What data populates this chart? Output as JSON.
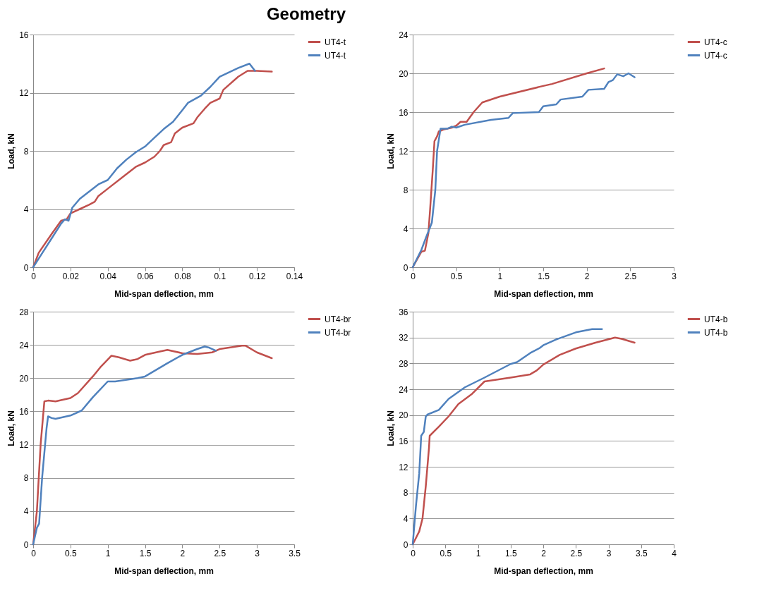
{
  "chart_data": [
    {
      "type": "line",
      "title": "Geometry",
      "xlabel": "Mid-span deflection, mm",
      "ylabel": "Load, kN",
      "xlim": [
        0,
        0.14
      ],
      "xticks": [
        0,
        0.02,
        0.04,
        0.06,
        0.08,
        0.1,
        0.12,
        0.14
      ],
      "ylim": [
        0,
        16
      ],
      "yticks": [
        0,
        4,
        8,
        12,
        16
      ],
      "grid": "y",
      "legend": "right",
      "series": [
        {
          "name": "UT4-t",
          "color": "#c0504d",
          "x": [
            0,
            0.003,
            0.01,
            0.015,
            0.018,
            0.02,
            0.025,
            0.03,
            0.033,
            0.035,
            0.04,
            0.05,
            0.055,
            0.06,
            0.065,
            0.068,
            0.07,
            0.074,
            0.076,
            0.08,
            0.086,
            0.088,
            0.092,
            0.095,
            0.1,
            0.102,
            0.11,
            0.115,
            0.12,
            0.128
          ],
          "values": [
            0,
            1,
            2.3,
            3.2,
            3.3,
            3.7,
            4,
            4.3,
            4.5,
            4.9,
            5.4,
            6.4,
            6.9,
            7.2,
            7.6,
            8,
            8.4,
            8.6,
            9.2,
            9.6,
            9.9,
            10.3,
            10.9,
            11.3,
            11.6,
            12.2,
            13.1,
            13.5,
            13.5,
            13.45
          ]
        },
        {
          "name": "UT4-t",
          "color": "#4f81bd",
          "x": [
            0,
            0.005,
            0.01,
            0.015,
            0.017,
            0.019,
            0.021,
            0.025,
            0.03,
            0.035,
            0.04,
            0.045,
            0.05,
            0.055,
            0.06,
            0.065,
            0.07,
            0.075,
            0.08,
            0.083,
            0.09,
            0.095,
            0.1,
            0.105,
            0.11,
            0.116,
            0.119
          ],
          "values": [
            0,
            1,
            2,
            3,
            3.3,
            3.2,
            4.1,
            4.7,
            5.2,
            5.7,
            6,
            6.8,
            7.4,
            7.9,
            8.3,
            8.9,
            9.5,
            10,
            10.8,
            11.3,
            11.8,
            12.4,
            13.1,
            13.4,
            13.7,
            14,
            13.5
          ]
        }
      ]
    },
    {
      "type": "line",
      "xlabel": "Mid-span deflection, mm",
      "ylabel": "Load, kN",
      "xlim": [
        0,
        3
      ],
      "xticks": [
        0,
        0.5,
        1,
        1.5,
        2,
        2.5,
        3
      ],
      "ylim": [
        0,
        24
      ],
      "yticks": [
        0,
        4,
        8,
        12,
        16,
        20,
        24
      ],
      "grid": "y",
      "legend": "right",
      "series": [
        {
          "name": "UT4-c",
          "color": "#c0504d",
          "x": [
            0,
            0.1,
            0.14,
            0.18,
            0.2,
            0.23,
            0.25,
            0.28,
            0.3,
            0.35,
            0.45,
            0.5,
            0.55,
            0.62,
            0.7,
            0.8,
            1,
            1.5,
            1.6,
            2,
            2.2
          ],
          "values": [
            0,
            1.6,
            1.7,
            3.5,
            6,
            10,
            13,
            13.5,
            14,
            14.2,
            14.4,
            14.6,
            15,
            15,
            16,
            17,
            17.6,
            18.7,
            18.9,
            20,
            20.5
          ]
        },
        {
          "name": "UT4-c",
          "color": "#4f81bd",
          "x": [
            0,
            0.1,
            0.15,
            0.22,
            0.26,
            0.28,
            0.32,
            0.4,
            0.45,
            0.5,
            0.6,
            0.9,
            1.1,
            1.15,
            1.45,
            1.5,
            1.65,
            1.7,
            1.95,
            2.02,
            2.2,
            2.25,
            2.3,
            2.35,
            2.42,
            2.48,
            2.55
          ],
          "values": [
            0,
            1.8,
            3,
            4.6,
            8,
            12,
            14.3,
            14.3,
            14.5,
            14.4,
            14.7,
            15.2,
            15.4,
            15.9,
            16,
            16.6,
            16.8,
            17.3,
            17.6,
            18.3,
            18.4,
            19.1,
            19.3,
            19.9,
            19.7,
            20,
            19.6
          ]
        }
      ]
    },
    {
      "type": "line",
      "xlabel": "Mid-span deflection, mm",
      "ylabel": "Load, kN",
      "xlim": [
        0,
        3.5
      ],
      "xticks": [
        0,
        0.5,
        1,
        1.5,
        2,
        2.5,
        3,
        3.5
      ],
      "ylim": [
        0,
        28
      ],
      "yticks": [
        0,
        4,
        8,
        12,
        16,
        20,
        24,
        28
      ],
      "grid": "y",
      "legend": "right",
      "series": [
        {
          "name": "UT4-br",
          "color": "#c0504d",
          "x": [
            0,
            0.05,
            0.1,
            0.15,
            0.2,
            0.3,
            0.5,
            0.6,
            0.8,
            0.9,
            1.05,
            1.15,
            1.3,
            1.4,
            1.5,
            1.7,
            1.8,
            2,
            2.2,
            2.4,
            2.5,
            2.8,
            2.85,
            3,
            3.2
          ],
          "values": [
            0,
            4,
            12,
            17.2,
            17.3,
            17.2,
            17.6,
            18.2,
            20.2,
            21.3,
            22.7,
            22.5,
            22.1,
            22.3,
            22.8,
            23.2,
            23.4,
            23,
            22.9,
            23.1,
            23.5,
            23.9,
            23.9,
            23.1,
            22.4
          ]
        },
        {
          "name": "UT4-br",
          "color": "#4f81bd",
          "x": [
            0,
            0.05,
            0.08,
            0.12,
            0.18,
            0.2,
            0.25,
            0.3,
            0.5,
            0.65,
            0.8,
            1,
            1.1,
            1.4,
            1.5,
            1.8,
            2,
            2.2,
            2.3,
            2.35,
            2.45
          ],
          "values": [
            0,
            2,
            2.5,
            8,
            14,
            15.4,
            15.2,
            15.1,
            15.5,
            16.1,
            17.7,
            19.6,
            19.6,
            20,
            20.2,
            21.8,
            22.8,
            23.5,
            23.8,
            23.7,
            23.3
          ]
        }
      ]
    },
    {
      "type": "line",
      "xlabel": "Mid-span deflection, mm",
      "ylabel": "Load, kN",
      "xlim": [
        0,
        4
      ],
      "xticks": [
        0,
        0.5,
        1,
        1.5,
        2,
        2.5,
        3,
        3.5,
        4
      ],
      "ylim": [
        0,
        36
      ],
      "yticks": [
        0,
        4,
        8,
        12,
        16,
        20,
        24,
        28,
        32,
        36
      ],
      "grid": "y",
      "legend": "right",
      "series": [
        {
          "name": "UT4-b",
          "color": "#c0504d",
          "x": [
            0,
            0.1,
            0.15,
            0.2,
            0.25,
            0.26,
            0.4,
            0.55,
            0.7,
            0.9,
            1.1,
            1.5,
            1.8,
            1.9,
            2,
            2.25,
            2.5,
            2.8,
            3.1,
            3.2,
            3.4
          ],
          "values": [
            0,
            2,
            4,
            9,
            15,
            16.8,
            18.2,
            19.8,
            21.7,
            23.2,
            25.2,
            25.8,
            26.3,
            26.9,
            27.8,
            29.3,
            30.3,
            31.2,
            32,
            31.8,
            31.2
          ]
        },
        {
          "name": "UT4-b",
          "color": "#4f81bd",
          "x": [
            0,
            0.05,
            0.1,
            0.13,
            0.17,
            0.2,
            0.23,
            0.4,
            0.55,
            0.8,
            1.1,
            1.5,
            1.6,
            1.8,
            1.95,
            2,
            2.2,
            2.5,
            2.75,
            2.9
          ],
          "values": [
            0,
            6,
            11,
            16.8,
            17.4,
            19.8,
            20.1,
            20.8,
            22.5,
            24.3,
            25.8,
            27.9,
            28.2,
            29.6,
            30.4,
            30.8,
            31.7,
            32.8,
            33.3,
            33.3
          ]
        }
      ]
    }
  ]
}
